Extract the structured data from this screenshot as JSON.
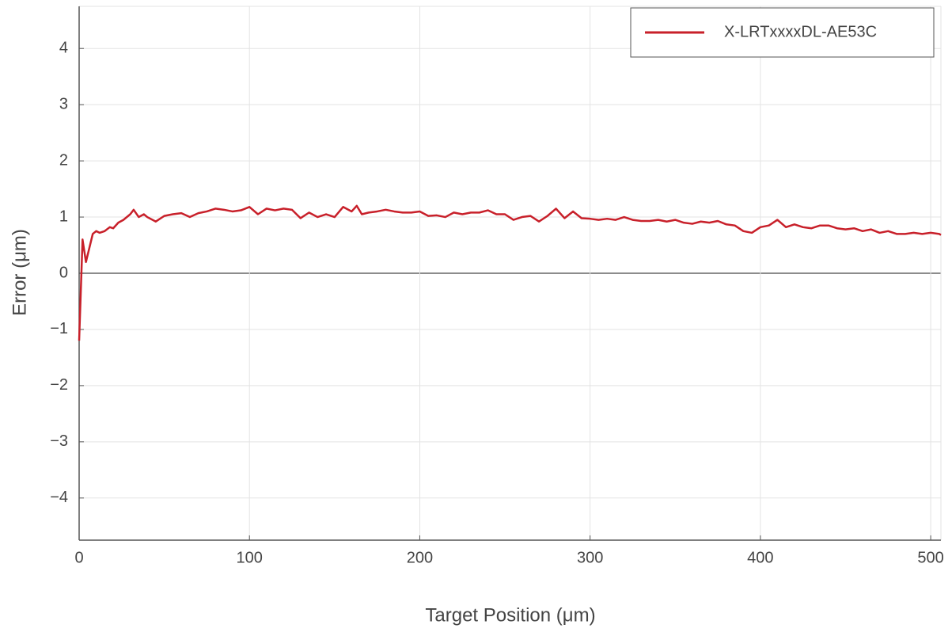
{
  "chart_data": {
    "type": "line",
    "xlabel": "Target Position (μm)",
    "ylabel": "Error (μm)",
    "x": [
      0,
      2,
      4,
      6,
      8,
      10,
      12,
      15,
      18,
      20,
      23,
      26,
      30,
      32,
      35,
      38,
      40,
      45,
      50,
      55,
      60,
      65,
      70,
      75,
      80,
      85,
      90,
      95,
      100,
      105,
      110,
      115,
      120,
      125,
      130,
      135,
      140,
      145,
      150,
      155,
      160,
      163,
      166,
      170,
      175,
      180,
      185,
      190,
      195,
      200,
      205,
      210,
      215,
      220,
      225,
      230,
      235,
      240,
      245,
      250,
      255,
      260,
      265,
      270,
      275,
      280,
      285,
      290,
      295,
      300,
      305,
      310,
      315,
      320,
      325,
      330,
      335,
      340,
      345,
      350,
      355,
      360,
      365,
      370,
      375,
      380,
      385,
      390,
      395,
      400,
      405,
      410,
      415,
      420,
      425,
      430,
      435,
      440,
      445,
      450,
      455,
      460,
      465,
      470,
      475,
      480,
      485,
      490,
      495,
      500,
      505,
      506
    ],
    "series": [
      {
        "name": "X-LRTxxxxDL-AE53C",
        "color": "#c8202a",
        "values": [
          -1.2,
          0.6,
          0.2,
          0.45,
          0.7,
          0.75,
          0.72,
          0.75,
          0.82,
          0.8,
          0.9,
          0.95,
          1.05,
          1.13,
          1.0,
          1.05,
          1.0,
          0.92,
          1.02,
          1.05,
          1.07,
          1.0,
          1.07,
          1.1,
          1.15,
          1.13,
          1.1,
          1.12,
          1.18,
          1.05,
          1.15,
          1.12,
          1.15,
          1.13,
          0.98,
          1.08,
          1.0,
          1.05,
          1.0,
          1.18,
          1.1,
          1.2,
          1.05,
          1.08,
          1.1,
          1.13,
          1.1,
          1.08,
          1.08,
          1.1,
          1.02,
          1.03,
          1.0,
          1.08,
          1.05,
          1.08,
          1.08,
          1.12,
          1.05,
          1.05,
          0.95,
          1.0,
          1.02,
          0.92,
          1.02,
          1.15,
          0.98,
          1.1,
          0.98,
          0.97,
          0.95,
          0.97,
          0.95,
          1.0,
          0.95,
          0.93,
          0.93,
          0.95,
          0.92,
          0.95,
          0.9,
          0.88,
          0.92,
          0.9,
          0.93,
          0.87,
          0.85,
          0.75,
          0.72,
          0.82,
          0.85,
          0.95,
          0.82,
          0.87,
          0.82,
          0.8,
          0.85,
          0.85,
          0.8,
          0.78,
          0.8,
          0.75,
          0.78,
          0.72,
          0.75,
          0.7,
          0.7,
          0.72,
          0.7,
          0.72,
          0.7,
          0.68
        ]
      }
    ],
    "xlim": [
      0,
      506
    ],
    "ylim": [
      -4.75,
      4.75
    ],
    "xticks": [
      0,
      100,
      200,
      300,
      400,
      500
    ],
    "yticks": [
      {
        "value": -4,
        "label": "−4"
      },
      {
        "value": -3,
        "label": "−3"
      },
      {
        "value": -2,
        "label": "−2"
      },
      {
        "value": -1,
        "label": "−1"
      },
      0,
      1,
      2,
      3,
      4
    ],
    "grid": true,
    "legend": "upper right"
  }
}
